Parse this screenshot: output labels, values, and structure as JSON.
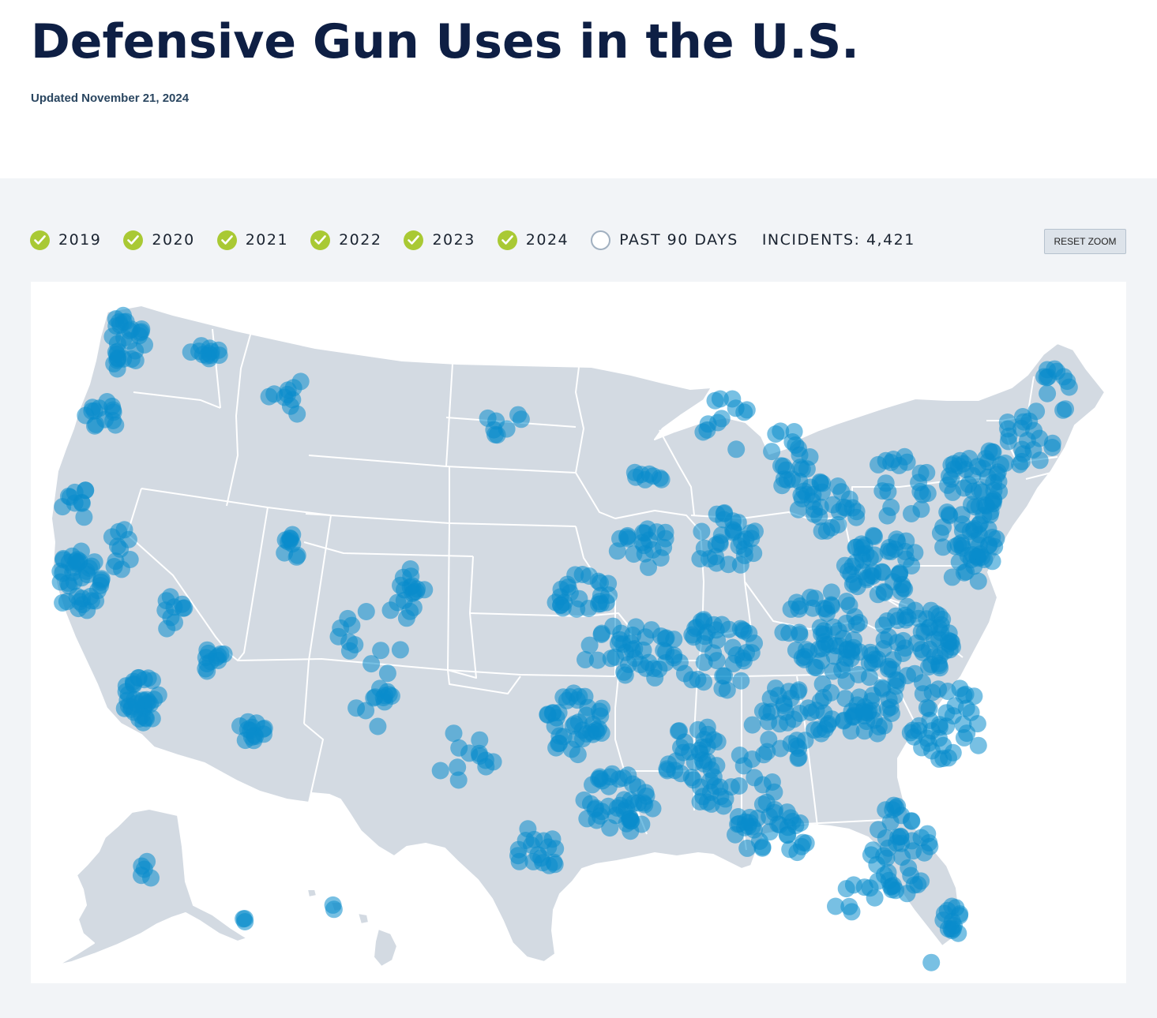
{
  "header": {
    "title": "Defensive Gun Uses in the U.S.",
    "updated": "Updated November 21, 2024"
  },
  "filters": [
    {
      "label": "2019",
      "checked": true
    },
    {
      "label": "2020",
      "checked": true
    },
    {
      "label": "2021",
      "checked": true
    },
    {
      "label": "2022",
      "checked": true
    },
    {
      "label": "2023",
      "checked": true
    },
    {
      "label": "2024",
      "checked": true
    },
    {
      "label": "PAST 90 DAYS",
      "checked": false
    }
  ],
  "incidents_label": "INCIDENTS: 4,421",
  "reset_zoom_label": "RESET ZOOM",
  "map": {
    "land_color": "#d3dae2",
    "border_color": "#ffffff",
    "marker_color": "#0a8ccc",
    "marker_opacity": 0.55
  },
  "colors": {
    "title": "#0e1f44",
    "check_on": "#a9c934",
    "check_off_border": "#a1b0c0",
    "panel_background": "#f2f4f7"
  }
}
